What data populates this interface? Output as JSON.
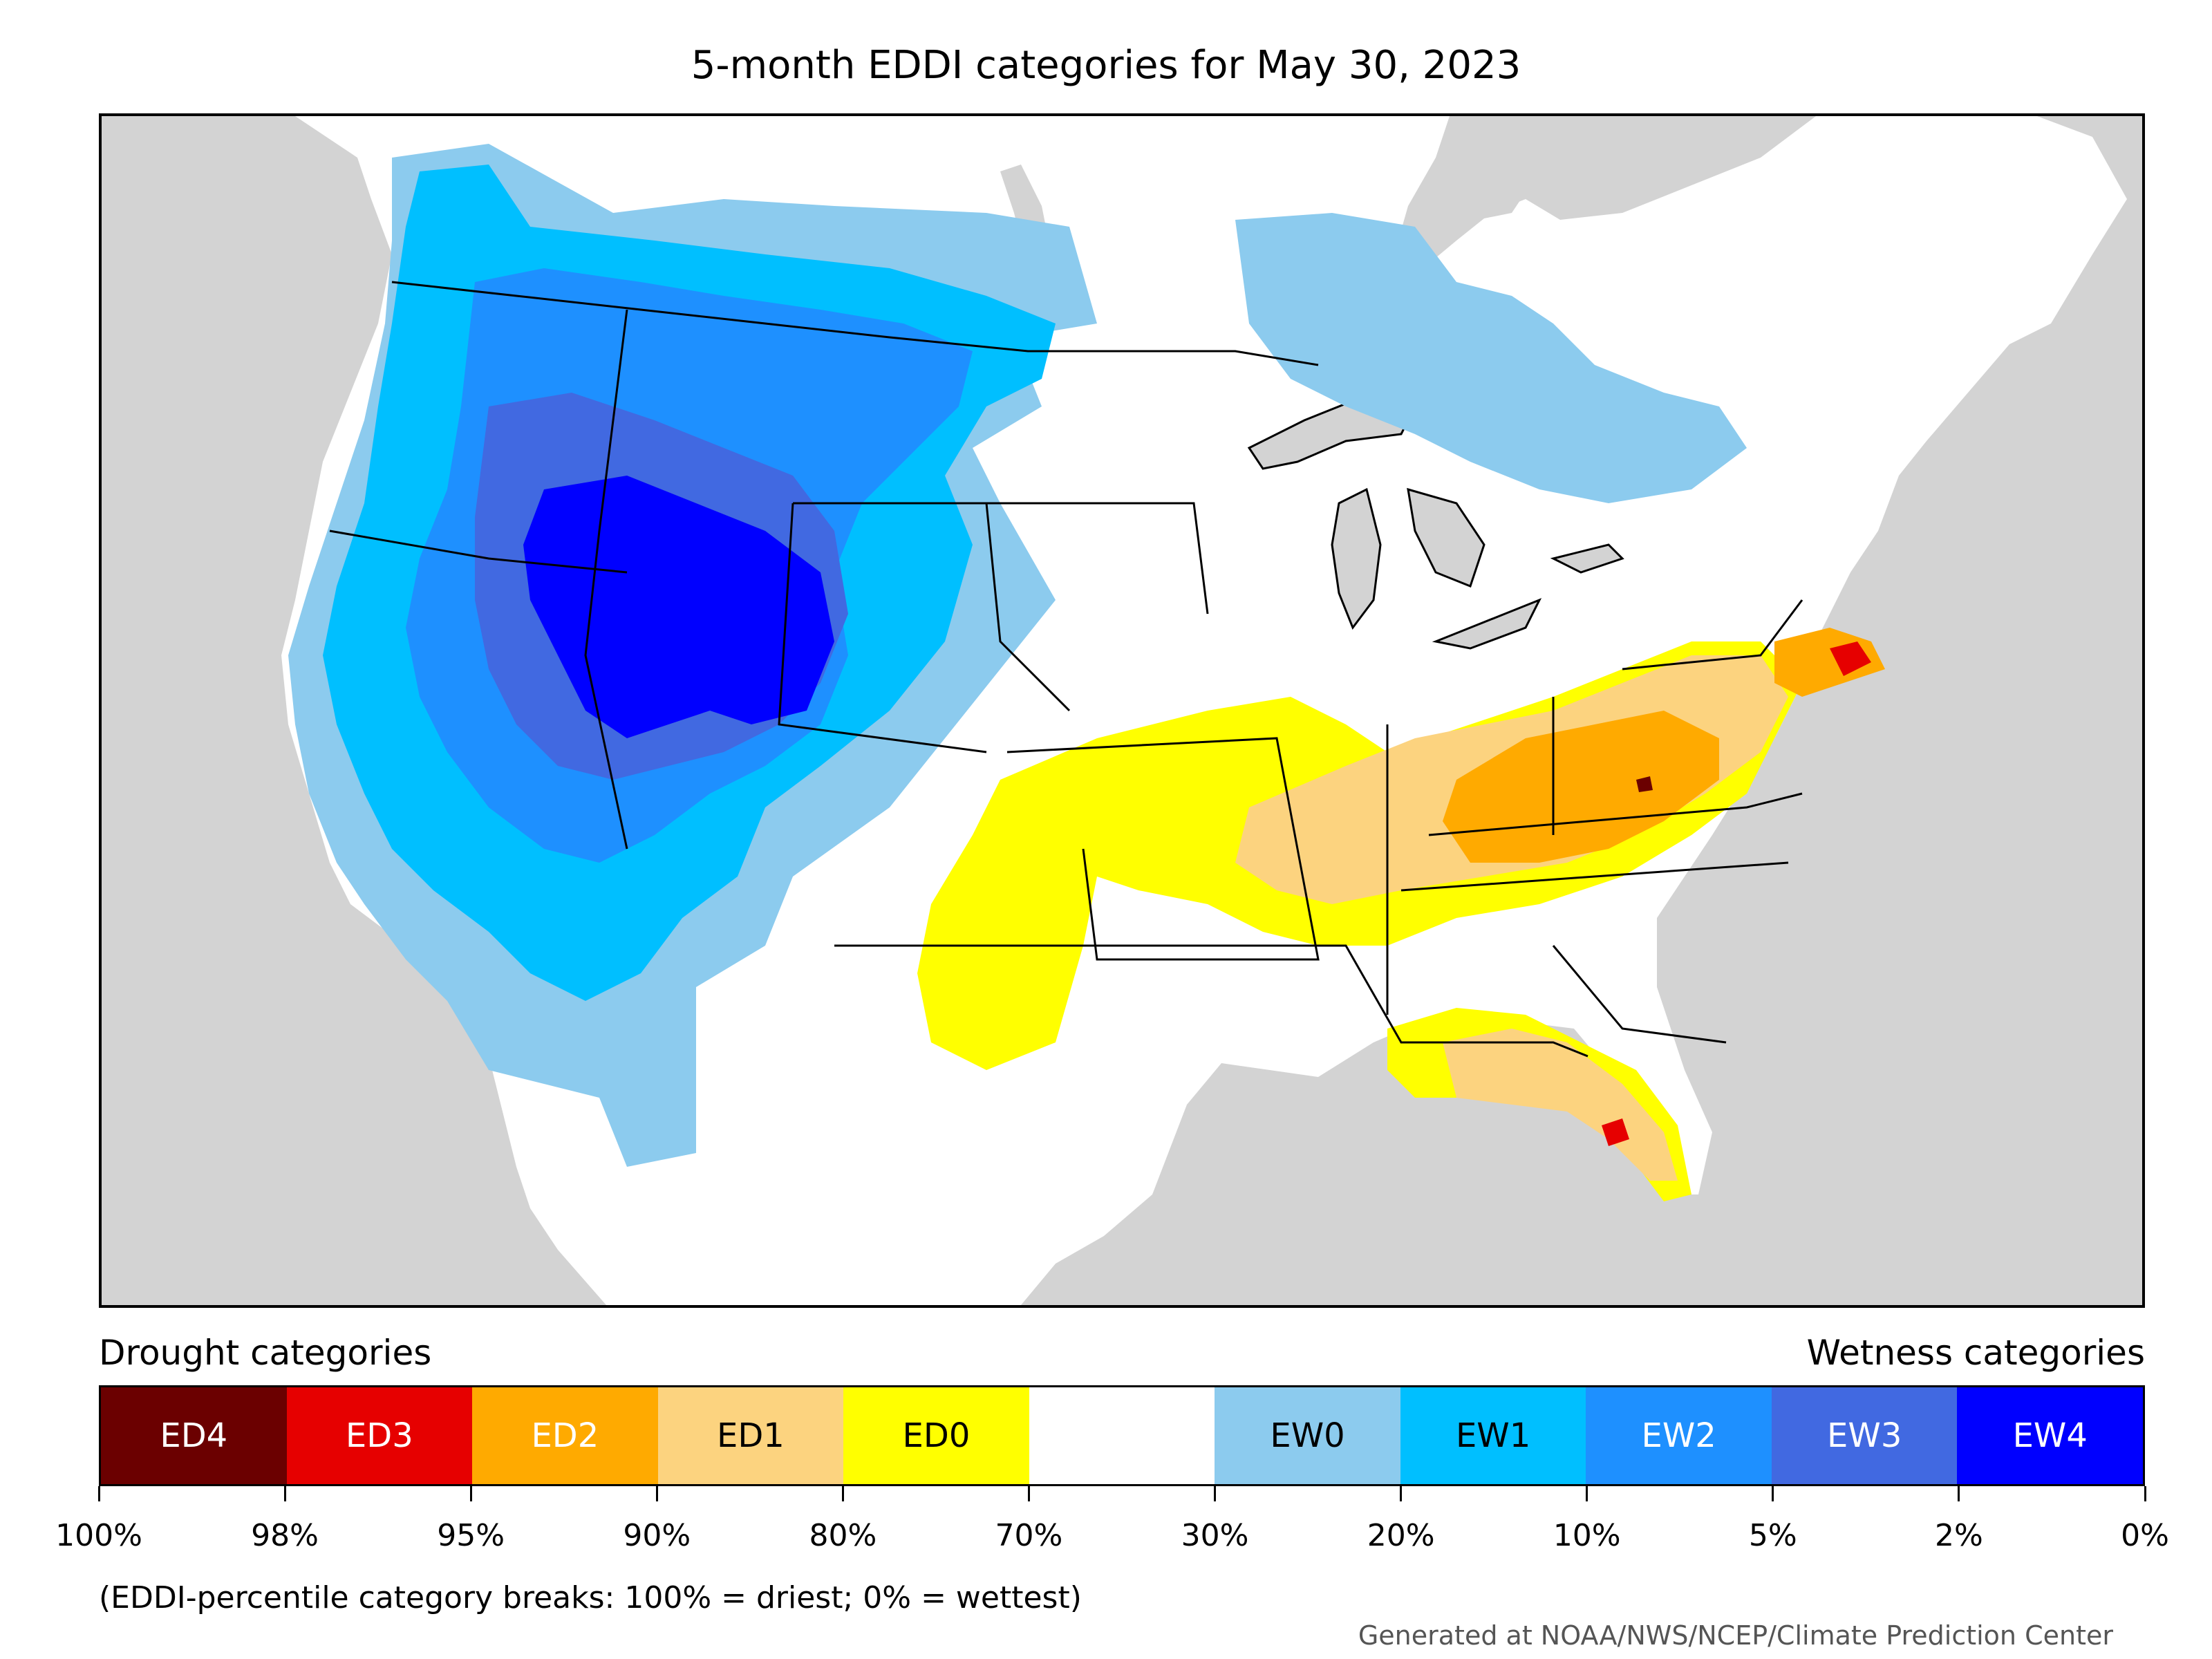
{
  "title": "5-month EDDI categories for May 30, 2023",
  "legend": {
    "drought_label": "Drought categories",
    "wetness_label": "Wetness categories",
    "categories": [
      {
        "label": "ED4",
        "color": "#6b0000",
        "text_color": "#ffffff"
      },
      {
        "label": "ED3",
        "color": "#e60000",
        "text_color": "#ffffff"
      },
      {
        "label": "ED2",
        "color": "#ffaa00",
        "text_color": "#ffffff"
      },
      {
        "label": "ED1",
        "color": "#fcd37f",
        "text_color": "#000000"
      },
      {
        "label": "ED0",
        "color": "#ffff00",
        "text_color": "#000000"
      },
      {
        "label": "",
        "color": "#ffffff",
        "text_color": "#000000"
      },
      {
        "label": "EW0",
        "color": "#8ccbee",
        "text_color": "#000000"
      },
      {
        "label": "EW1",
        "color": "#00bfff",
        "text_color": "#000000"
      },
      {
        "label": "EW2",
        "color": "#1e90ff",
        "text_color": "#ffffff"
      },
      {
        "label": "EW3",
        "color": "#4169e1",
        "text_color": "#ffffff"
      },
      {
        "label": "EW4",
        "color": "#0000ff",
        "text_color": "#ffffff"
      }
    ],
    "ticks": [
      "100%",
      "98%",
      "95%",
      "90%",
      "80%",
      "70%",
      "30%",
      "20%",
      "10%",
      "5%",
      "2%",
      "0%"
    ]
  },
  "note": "(EDDI-percentile category breaks: 100% = driest; 0% = wettest)",
  "credit": "Generated at NOAA/NWS/NCEP/Climate Prediction Center",
  "colors": {
    "ocean": "#d3d3d3",
    "land": "#ffffff",
    "border": "#000000"
  }
}
